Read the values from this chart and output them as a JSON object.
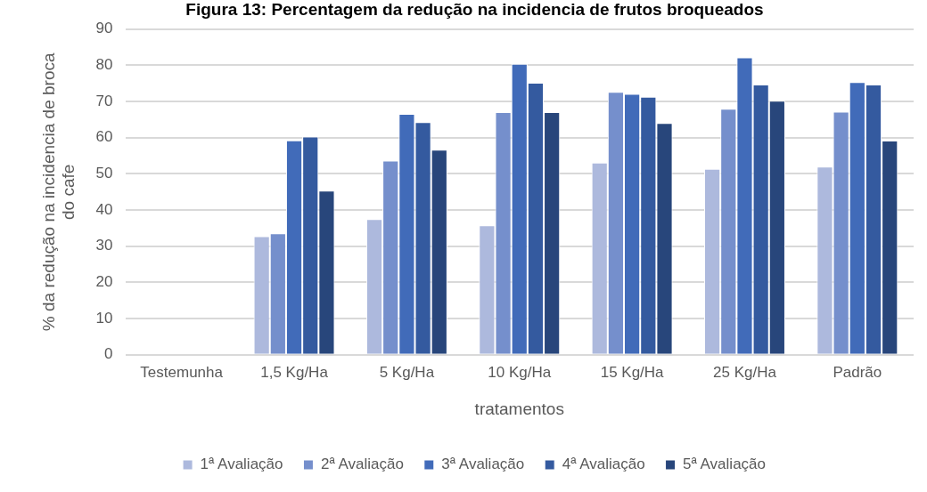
{
  "chart_data": {
    "type": "bar",
    "title": "Figura 13: Percentagem da redução na incidencia de frutos broqueados",
    "xlabel": "tratamentos",
    "ylabel": "% da redução na incidencia de broca do cafe",
    "categories": [
      "Testemunha",
      "1,5 Kg/Ha",
      "5 Kg/Ha",
      "10 Kg/Ha",
      "15 Kg/Ha",
      "25 Kg/Ha",
      "Padrão"
    ],
    "series": [
      {
        "name": "1ª Avaliação",
        "color": "#adb9dd",
        "values": [
          0,
          32.8,
          37.5,
          35.8,
          53.1,
          51.4,
          52.0
        ]
      },
      {
        "name": "2ª Avaliação",
        "color": "#758fcc",
        "values": [
          0,
          33.6,
          53.7,
          67.1,
          72.7,
          68.0,
          67.2
        ]
      },
      {
        "name": "3ª Avaliação",
        "color": "#416bb9",
        "values": [
          0,
          59.3,
          66.6,
          80.4,
          72.1,
          82.2,
          75.4
        ]
      },
      {
        "name": "4ª Avaliação",
        "color": "#345a9f",
        "values": [
          0,
          60.3,
          64.3,
          75.2,
          71.3,
          74.7,
          74.7
        ]
      },
      {
        "name": "5ª Avaliação",
        "color": "#28467b",
        "values": [
          0,
          45.4,
          56.7,
          67.1,
          64.1,
          70.2,
          59.2
        ]
      }
    ],
    "ylim": [
      0,
      90
    ],
    "yticks": [
      0,
      10,
      20,
      30,
      40,
      50,
      60,
      70,
      80,
      90
    ],
    "grid": "y",
    "legend": "bottom"
  }
}
